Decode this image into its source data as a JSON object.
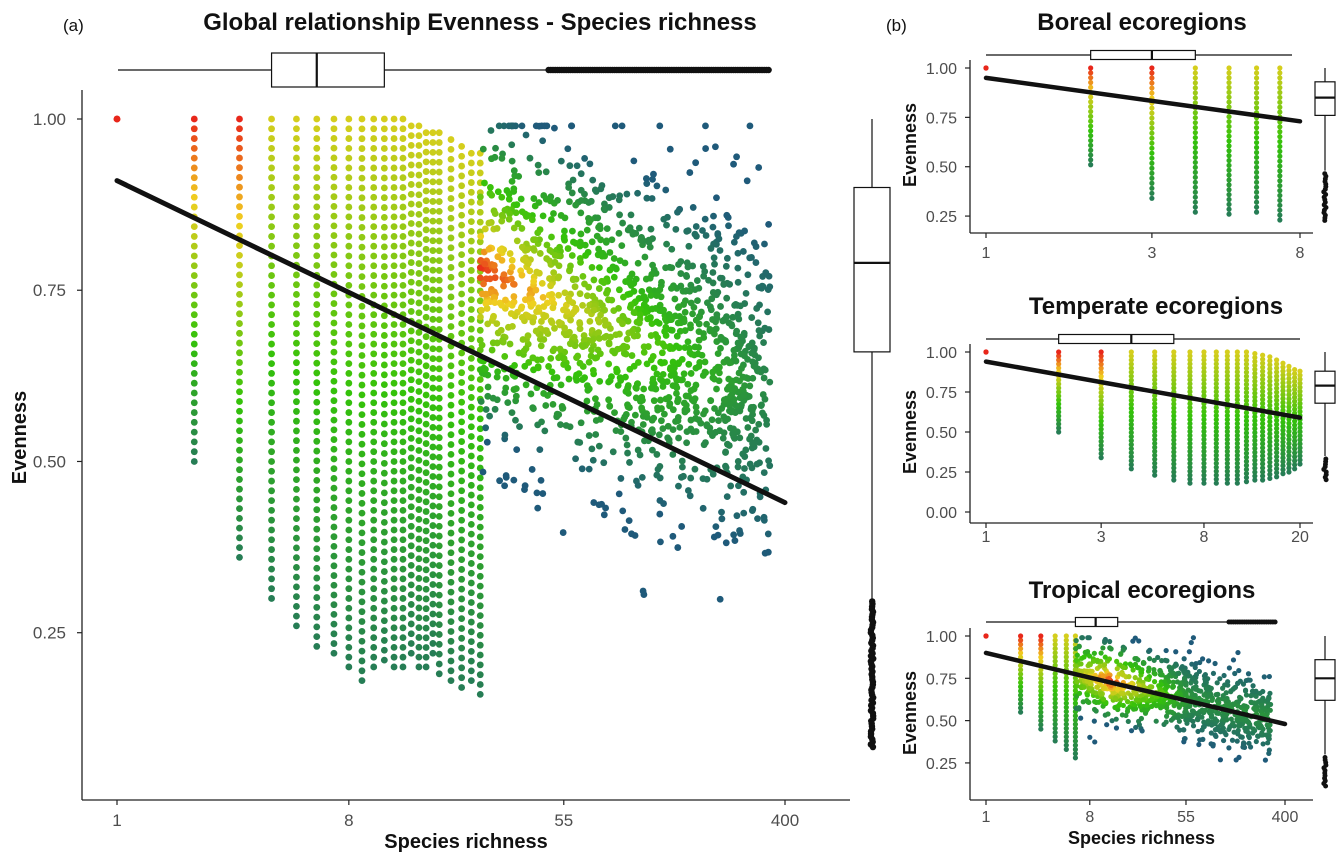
{
  "panel_labels": {
    "a": "(a)",
    "b": "(b)"
  },
  "colors": {
    "low_density": "#1f5a7a",
    "mid_density": "#34c20a",
    "high_density": "#f0d020",
    "peak_density": "#e8261a",
    "regression_line": "#111111",
    "axis": "#222222"
  },
  "chart_data": [
    {
      "id": "global",
      "type": "scatter",
      "title": "Global relationship Evenness - Species richness",
      "xlabel": "Species richness",
      "ylabel": "Evenness",
      "x_scale": "log",
      "xlim": [
        1,
        400
      ],
      "ylim": [
        0.07,
        1.0
      ],
      "x_ticks": [
        1,
        8,
        55,
        400
      ],
      "x_tick_labels": [
        "1",
        "8",
        "55",
        "400"
      ],
      "y_ticks": [
        0.25,
        0.5,
        0.75,
        1.0
      ],
      "y_tick_labels": [
        "0.25",
        "0.50",
        "0.75",
        "1.00"
      ],
      "grid": false,
      "regression_line": {
        "x": [
          1,
          400
        ],
        "y": [
          0.91,
          0.44
        ]
      },
      "column_points": [
        {
          "x": 1,
          "ymin": 1.0,
          "ymax": 1.0
        },
        {
          "x": 2,
          "ymin": 0.5,
          "ymax": 1.0
        },
        {
          "x": 3,
          "ymin": 0.36,
          "ymax": 1.0
        },
        {
          "x": 4,
          "ymin": 0.3,
          "ymax": 1.0
        },
        {
          "x": 5,
          "ymin": 0.26,
          "ymax": 1.0
        },
        {
          "x": 6,
          "ymin": 0.23,
          "ymax": 1.0
        },
        {
          "x": 7,
          "ymin": 0.22,
          "ymax": 1.0
        },
        {
          "x": 8,
          "ymin": 0.2,
          "ymax": 1.0
        },
        {
          "x": 9,
          "ymin": 0.18,
          "ymax": 1.0
        },
        {
          "x": 10,
          "ymin": 0.2,
          "ymax": 1.0
        },
        {
          "x": 11,
          "ymin": 0.21,
          "ymax": 1.0
        },
        {
          "x": 12,
          "ymin": 0.2,
          "ymax": 1.0
        },
        {
          "x": 13,
          "ymin": 0.2,
          "ymax": 1.0
        },
        {
          "x": 14,
          "ymin": 0.22,
          "ymax": 0.99
        },
        {
          "x": 15,
          "ymin": 0.2,
          "ymax": 0.99
        },
        {
          "x": 16,
          "ymin": 0.2,
          "ymax": 0.98
        },
        {
          "x": 17,
          "ymin": 0.22,
          "ymax": 0.98
        },
        {
          "x": 18,
          "ymin": 0.19,
          "ymax": 0.98
        },
        {
          "x": 20,
          "ymin": 0.18,
          "ymax": 0.97
        },
        {
          "x": 22,
          "ymin": 0.17,
          "ymax": 0.96
        },
        {
          "x": 24,
          "ymin": 0.18,
          "ymax": 0.95
        },
        {
          "x": 26,
          "ymin": 0.16,
          "ymax": 0.95
        }
      ],
      "cloud": {
        "x_range": [
          26,
          350
        ],
        "y_center_at_start": 0.78,
        "y_center_at_end": 0.6,
        "spread": 0.2
      },
      "boxplot_x": {
        "min": 1,
        "q1": 4,
        "median": 6,
        "q3": 11,
        "whisker_high": 48,
        "outliers_to": 350
      },
      "boxplot_y": {
        "min": 0.3,
        "q1": 0.66,
        "median": 0.79,
        "q3": 0.9,
        "max": 1.0,
        "outliers_to": 0.08
      }
    },
    {
      "id": "boreal",
      "type": "scatter",
      "title": "Boreal ecoregions",
      "xlabel": "",
      "ylabel": "Evenness",
      "x_scale": "log",
      "xlim": [
        1,
        8
      ],
      "ylim": [
        0.22,
        1.0
      ],
      "x_ticks": [
        1,
        3,
        8
      ],
      "x_tick_labels": [
        "1",
        "3",
        "8"
      ],
      "y_ticks": [
        0.25,
        0.5,
        0.75,
        1.0
      ],
      "y_tick_labels": [
        "0.25",
        "0.50",
        "0.75",
        "1.00"
      ],
      "grid": false,
      "regression_line": {
        "x": [
          1,
          8
        ],
        "y": [
          0.95,
          0.73
        ]
      },
      "column_points": [
        {
          "x": 1,
          "ymin": 1.0,
          "ymax": 1.0
        },
        {
          "x": 2,
          "ymin": 0.51,
          "ymax": 1.0
        },
        {
          "x": 3,
          "ymin": 0.34,
          "ymax": 1.0
        },
        {
          "x": 4,
          "ymin": 0.27,
          "ymax": 1.0
        },
        {
          "x": 5,
          "ymin": 0.26,
          "ymax": 1.0
        },
        {
          "x": 6,
          "ymin": 0.27,
          "ymax": 1.0
        },
        {
          "x": 7,
          "ymin": 0.23,
          "ymax": 1.0
        }
      ],
      "boxplot_x": {
        "min": 1,
        "q1": 2,
        "median": 3,
        "q3": 4,
        "whisker_high": 7
      },
      "boxplot_y": {
        "min": 0.48,
        "q1": 0.76,
        "median": 0.85,
        "q3": 0.93,
        "max": 1.0,
        "outliers_to": 0.22
      }
    },
    {
      "id": "temperate",
      "type": "scatter",
      "title": "Temperate ecoregions",
      "xlabel": "",
      "ylabel": "Evenness",
      "x_scale": "log",
      "xlim": [
        1,
        20
      ],
      "ylim": [
        0.0,
        1.0
      ],
      "x_ticks": [
        1,
        3,
        8,
        20
      ],
      "x_tick_labels": [
        "1",
        "3",
        "8",
        "20"
      ],
      "y_ticks": [
        0.0,
        0.25,
        0.5,
        0.75,
        1.0
      ],
      "y_tick_labels": [
        "0.00",
        "0.25",
        "0.50",
        "0.75",
        "1.00"
      ],
      "grid": false,
      "regression_line": {
        "x": [
          1,
          20
        ],
        "y": [
          0.94,
          0.59
        ]
      },
      "column_points": [
        {
          "x": 1,
          "ymin": 1.0,
          "ymax": 1.0
        },
        {
          "x": 2,
          "ymin": 0.5,
          "ymax": 1.0
        },
        {
          "x": 3,
          "ymin": 0.34,
          "ymax": 1.0
        },
        {
          "x": 4,
          "ymin": 0.27,
          "ymax": 1.0
        },
        {
          "x": 5,
          "ymin": 0.23,
          "ymax": 1.0
        },
        {
          "x": 6,
          "ymin": 0.2,
          "ymax": 1.0
        },
        {
          "x": 7,
          "ymin": 0.18,
          "ymax": 1.0
        },
        {
          "x": 8,
          "ymin": 0.18,
          "ymax": 1.0
        },
        {
          "x": 9,
          "ymin": 0.18,
          "ymax": 1.0
        },
        {
          "x": 10,
          "ymin": 0.18,
          "ymax": 1.0
        },
        {
          "x": 11,
          "ymin": 0.18,
          "ymax": 1.0
        },
        {
          "x": 12,
          "ymin": 0.19,
          "ymax": 1.0
        },
        {
          "x": 13,
          "ymin": 0.2,
          "ymax": 0.99
        },
        {
          "x": 14,
          "ymin": 0.2,
          "ymax": 0.98
        },
        {
          "x": 15,
          "ymin": 0.21,
          "ymax": 0.97
        },
        {
          "x": 16,
          "ymin": 0.22,
          "ymax": 0.95
        },
        {
          "x": 17,
          "ymin": 0.24,
          "ymax": 0.93
        },
        {
          "x": 18,
          "ymin": 0.25,
          "ymax": 0.91
        },
        {
          "x": 19,
          "ymin": 0.27,
          "ymax": 0.89
        },
        {
          "x": 20,
          "ymin": 0.3,
          "ymax": 0.88
        }
      ],
      "boxplot_x": {
        "min": 1,
        "q1": 2,
        "median": 4,
        "q3": 6,
        "whisker_high": 20
      },
      "boxplot_y": {
        "min": 0.35,
        "q1": 0.68,
        "median": 0.79,
        "q3": 0.88,
        "max": 1.0,
        "outliers_to": 0.19
      }
    },
    {
      "id": "tropical",
      "type": "scatter",
      "title": "Tropical ecoregions",
      "xlabel": "Species richness",
      "ylabel": "Evenness",
      "x_scale": "log",
      "xlim": [
        1,
        400
      ],
      "ylim": [
        0.09,
        1.0
      ],
      "x_ticks": [
        1,
        8,
        55,
        400
      ],
      "x_tick_labels": [
        "1",
        "8",
        "55",
        "400"
      ],
      "y_ticks": [
        0.25,
        0.5,
        0.75,
        1.0
      ],
      "y_tick_labels": [
        "0.25",
        "0.50",
        "0.75",
        "1.00"
      ],
      "grid": false,
      "regression_line": {
        "x": [
          1,
          400
        ],
        "y": [
          0.9,
          0.48
        ]
      },
      "column_points": [
        {
          "x": 1,
          "ymin": 1.0,
          "ymax": 1.0
        },
        {
          "x": 2,
          "ymin": 0.55,
          "ymax": 1.0
        },
        {
          "x": 3,
          "ymin": 0.45,
          "ymax": 1.0
        },
        {
          "x": 4,
          "ymin": 0.38,
          "ymax": 1.0
        },
        {
          "x": 5,
          "ymin": 0.33,
          "ymax": 1.0
        },
        {
          "x": 6,
          "ymin": 0.28,
          "ymax": 1.0
        }
      ],
      "cloud": {
        "x_range": [
          6,
          300
        ],
        "y_center_at_start": 0.78,
        "y_center_at_end": 0.52,
        "spread": 0.2,
        "hotspot_x": 12
      },
      "boxplot_x": {
        "min": 1,
        "q1": 6,
        "median": 9,
        "q3": 14,
        "whisker_high": 130,
        "outliers_to": 330
      },
      "boxplot_y": {
        "min": 0.3,
        "q1": 0.62,
        "median": 0.75,
        "q3": 0.86,
        "max": 1.0,
        "outliers_to": 0.1
      }
    }
  ]
}
